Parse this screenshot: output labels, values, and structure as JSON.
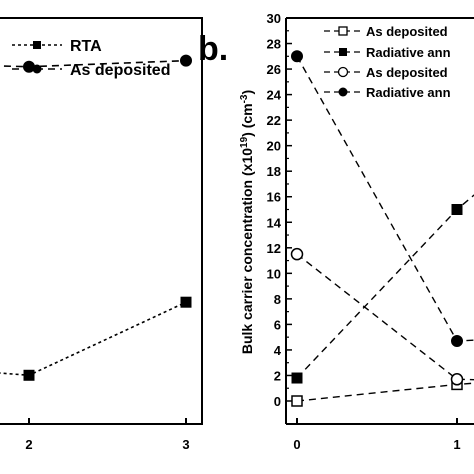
{
  "chart_data": [
    {
      "panel": "a",
      "type": "line",
      "x_ticks": [
        "2",
        "3"
      ],
      "series": [
        {
          "name": "RTA",
          "marker": "filled-square",
          "dash": "dotted",
          "color": "#000000",
          "points": [
            {
              "x": 1.0,
              "y": 1.5
            },
            {
              "x": 2,
              "y": 1.2
            },
            {
              "x": 3,
              "y": 3.0
            }
          ]
        },
        {
          "name": "As deposited",
          "marker": "filled-circle",
          "dash": "dashed",
          "color": "#000000",
          "points": [
            {
              "x": 1.0,
              "y": 8.9
            },
            {
              "x": 2,
              "y": 8.8
            },
            {
              "x": 3,
              "y": 8.95
            }
          ]
        }
      ],
      "xlim": [
        0.95,
        3.15
      ],
      "ylim": [
        0,
        10
      ],
      "xlabel": "",
      "ylabel": "",
      "legend": "top-right"
    },
    {
      "panel": "b",
      "panel_label": "b.",
      "type": "line",
      "ylabel": "Bulk carrier concentration (x10",
      "ylabel_sup": "19",
      "ylabel_rest": ") (cm",
      "ylabel_sup2": "-3",
      "ylabel_end": ")",
      "y_ticks": [
        "0",
        "2",
        "4",
        "6",
        "8",
        "10",
        "12",
        "14",
        "16",
        "18",
        "20",
        "22",
        "24",
        "26",
        "28",
        "30"
      ],
      "x_ticks": [
        "0",
        "1"
      ],
      "xlim": [
        -0.05,
        1.33
      ],
      "ylim": [
        0,
        30
      ],
      "legend": "top-right",
      "series": [
        {
          "name": "As deposited",
          "marker": "open-square",
          "dash": "dashed",
          "color": "#000000",
          "points": [
            {
              "x": 0,
              "y": 0
            },
            {
              "x": 1,
              "y": 1.3
            },
            {
              "x": 1.33,
              "y": 1.6
            }
          ]
        },
        {
          "name": "Radiative ann",
          "marker": "filled-square",
          "dash": "dashed",
          "color": "#000000",
          "points": [
            {
              "x": 0,
              "y": 1.8
            },
            {
              "x": 1,
              "y": 15.0
            },
            {
              "x": 1.33,
              "y": 18.5
            }
          ]
        },
        {
          "name": "As deposited",
          "marker": "open-circle",
          "dash": "dashed",
          "color": "#000000",
          "points": [
            {
              "x": 0,
              "y": 11.5
            },
            {
              "x": 1,
              "y": 1.7
            },
            {
              "x": 1.33,
              "y": 1.6
            }
          ]
        },
        {
          "name": "Radiative ann",
          "marker": "filled-circle",
          "dash": "dashed",
          "color": "#000000",
          "points": [
            {
              "x": 0,
              "y": 27.0
            },
            {
              "x": 1,
              "y": 4.7
            },
            {
              "x": 1.33,
              "y": 4.9
            }
          ]
        }
      ]
    }
  ]
}
